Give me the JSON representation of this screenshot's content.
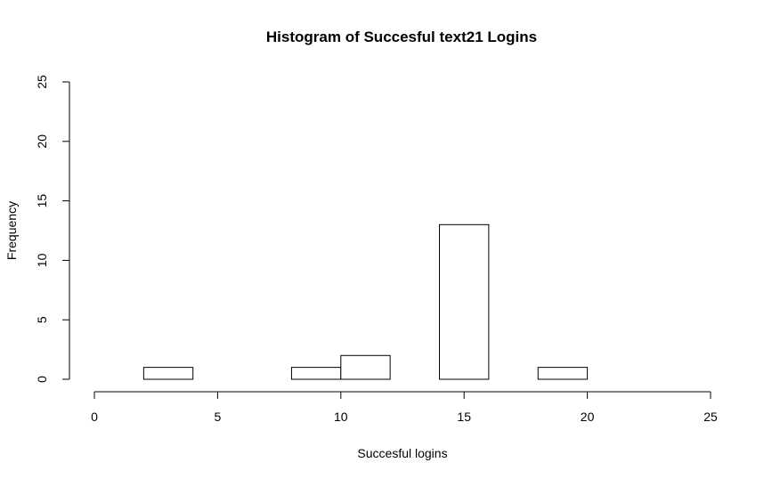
{
  "chart_data": {
    "type": "bar",
    "title": "Histogram of Succesful text21 Logins",
    "xlabel": "Succesful logins",
    "ylabel": "Frequency",
    "xlim": [
      0,
      25
    ],
    "ylim": [
      0,
      25
    ],
    "x_ticks": [
      "0",
      "5",
      "10",
      "15",
      "20",
      "25"
    ],
    "y_ticks": [
      "0",
      "5",
      "10",
      "15",
      "20",
      "25"
    ],
    "bins": [
      {
        "from": 2,
        "to": 4,
        "count": 1
      },
      {
        "from": 4,
        "to": 6,
        "count": 0
      },
      {
        "from": 6,
        "to": 8,
        "count": 0
      },
      {
        "from": 8,
        "to": 10,
        "count": 1
      },
      {
        "from": 10,
        "to": 12,
        "count": 2
      },
      {
        "from": 12,
        "to": 14,
        "count": 0
      },
      {
        "from": 14,
        "to": 16,
        "count": 13
      },
      {
        "from": 16,
        "to": 18,
        "count": 0
      },
      {
        "from": 18,
        "to": 20,
        "count": 1
      }
    ],
    "grid": false,
    "bar_fill": "#ffffff",
    "bar_stroke": "#000000"
  }
}
